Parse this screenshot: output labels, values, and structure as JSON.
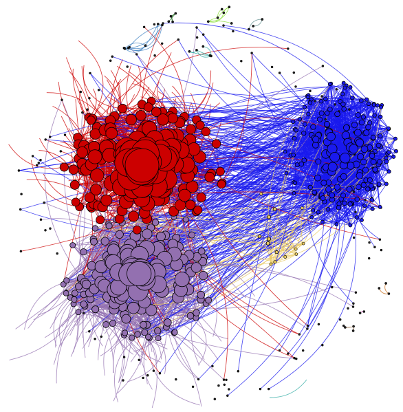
{
  "graph": {
    "kind": "community-network",
    "background": "#ffffff",
    "node_outline": "#000000",
    "communities": [
      {
        "id": "red",
        "color": "#cc0000",
        "nodes": 150
      },
      {
        "id": "purple",
        "color": "#9370b0",
        "nodes": 150
      },
      {
        "id": "blue",
        "color": "#1a1aee",
        "nodes": 190
      },
      {
        "id": "yellow",
        "color": "#e8c860",
        "nodes": 14
      },
      {
        "id": "light-green",
        "color": "#88dd33",
        "nodes": 6
      },
      {
        "id": "dark-green",
        "color": "#1f6b1f",
        "nodes": 4
      },
      {
        "id": "steel-blue",
        "color": "#3a7ec0",
        "nodes": 6
      },
      {
        "id": "teal",
        "color": "#2aa8a0",
        "nodes": 5
      },
      {
        "id": "gray-teal",
        "color": "#5a8a8a",
        "nodes": 3
      },
      {
        "id": "orange",
        "color": "#c86a14",
        "nodes": 3
      },
      {
        "id": "magenta",
        "color": "#e020c0",
        "nodes": 2
      },
      {
        "id": "brown",
        "color": "#8a5a2a",
        "nodes": 3
      }
    ],
    "labels_shown": false
  }
}
